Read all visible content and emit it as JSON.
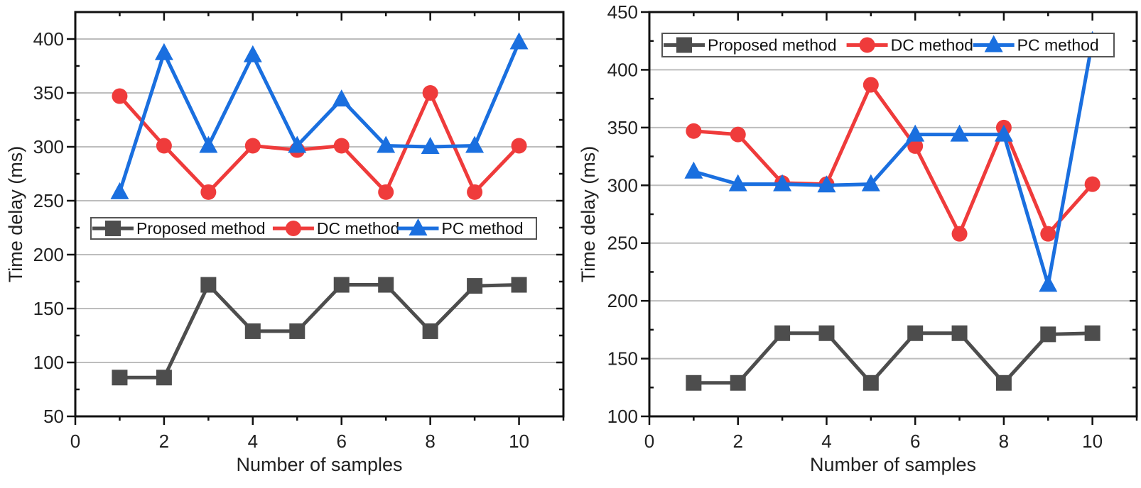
{
  "chart_data": [
    {
      "type": "line",
      "title": "",
      "xlabel": "Number of samples",
      "ylabel": "Time delay (ms)",
      "xlim": [
        0,
        11
      ],
      "ylim": [
        50,
        425
      ],
      "xticks": [
        0,
        2,
        4,
        6,
        8,
        10
      ],
      "yticks": [
        50,
        100,
        150,
        200,
        250,
        300,
        350,
        400
      ],
      "grid": true,
      "legend_position": "center",
      "x": [
        1,
        2,
        3,
        4,
        5,
        6,
        7,
        8,
        9,
        10
      ],
      "series": [
        {
          "name": "Proposed method",
          "color": "#4d4d4d",
          "marker": "square",
          "values": [
            86,
            86,
            172,
            129,
            129,
            172,
            172,
            129,
            171,
            172
          ]
        },
        {
          "name": "DC method",
          "color": "#ef3b3b",
          "marker": "circle",
          "values": [
            347,
            301,
            258,
            301,
            297,
            301,
            258,
            350,
            258,
            301
          ]
        },
        {
          "name": "PC method",
          "color": "#1a6fdf",
          "marker": "triangle",
          "values": [
            258,
            387,
            301,
            385,
            301,
            344,
            301,
            300,
            301,
            397
          ]
        }
      ]
    },
    {
      "type": "line",
      "title": "",
      "xlabel": "Number of samples",
      "ylabel": "Time delay (ms)",
      "xlim": [
        0,
        11
      ],
      "ylim": [
        100,
        450
      ],
      "xticks": [
        0,
        2,
        4,
        6,
        8,
        10
      ],
      "yticks": [
        100,
        150,
        200,
        250,
        300,
        350,
        400,
        450
      ],
      "grid": true,
      "legend_position": "top",
      "x": [
        1,
        2,
        3,
        4,
        5,
        6,
        7,
        8,
        9,
        10
      ],
      "series": [
        {
          "name": "Proposed method",
          "color": "#4d4d4d",
          "marker": "square",
          "values": [
            129,
            129,
            172,
            172,
            129,
            172,
            172,
            129,
            171,
            172
          ]
        },
        {
          "name": "DC method",
          "color": "#ef3b3b",
          "marker": "circle",
          "values": [
            347,
            344,
            302,
            301,
            387,
            334,
            258,
            350,
            258,
            301
          ]
        },
        {
          "name": "PC method",
          "color": "#1a6fdf",
          "marker": "triangle",
          "values": [
            312,
            301,
            301,
            300,
            301,
            344,
            344,
            344,
            214,
            425
          ]
        }
      ]
    }
  ]
}
